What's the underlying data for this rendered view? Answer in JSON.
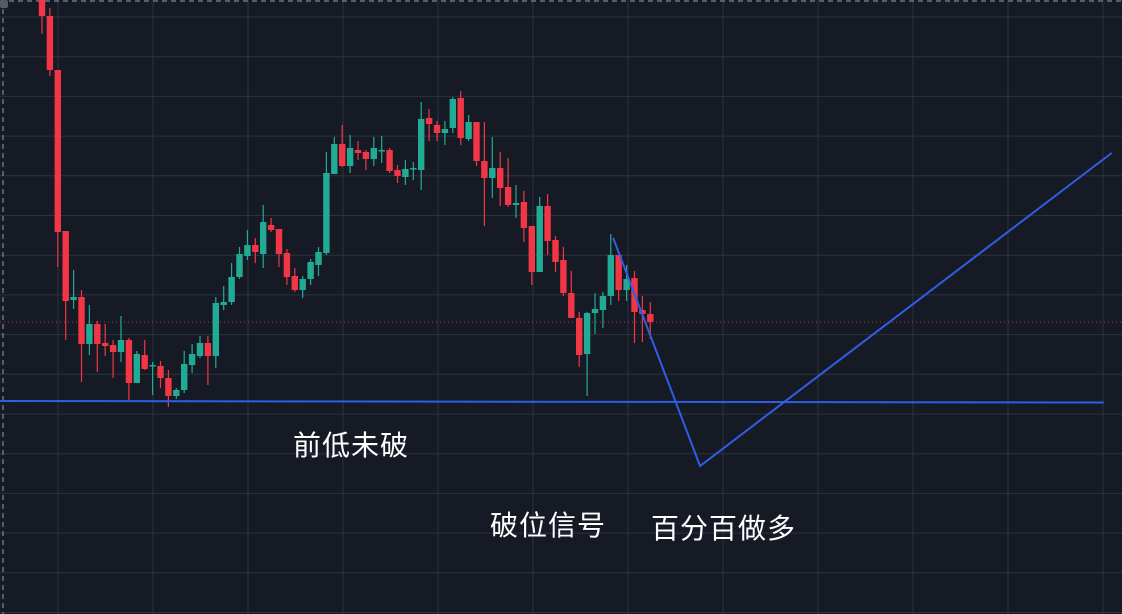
{
  "chart_data": {
    "type": "candlestick",
    "title": "",
    "xlabel": "",
    "ylabel": "",
    "ylim": [
      89.35,
      120.05
    ],
    "grid": true,
    "colors": {
      "up": "#22ab94",
      "down": "#f23645",
      "drawing": "#2e5ee6",
      "background": "#161a25",
      "grid": "#2e323d",
      "last_price_line": "#f23645"
    },
    "candles": [
      [
        120.3,
        120.4,
        118.35,
        119.25
      ],
      [
        119.25,
        119.65,
        116.25,
        116.55
      ],
      [
        116.55,
        116.55,
        106.7,
        108.45
      ],
      [
        108.5,
        108.5,
        103.05,
        105.0
      ],
      [
        105.05,
        106.55,
        104.6,
        105.2
      ],
      [
        105.2,
        105.55,
        100.95,
        102.85
      ],
      [
        102.85,
        104.8,
        102.3,
        103.85
      ],
      [
        103.85,
        104.0,
        101.45,
        102.85
      ],
      [
        102.9,
        103.85,
        102.25,
        102.75
      ],
      [
        102.8,
        103.05,
        101.15,
        102.45
      ],
      [
        102.45,
        104.25,
        101.95,
        103.05
      ],
      [
        103.05,
        103.15,
        100.05,
        100.9
      ],
      [
        100.9,
        102.5,
        100.9,
        102.35
      ],
      [
        102.3,
        103.05,
        101.55,
        101.6
      ],
      [
        101.75,
        101.95,
        100.3,
        101.8
      ],
      [
        101.75,
        102.0,
        100.65,
        101.15
      ],
      [
        101.15,
        101.55,
        99.7,
        100.25
      ],
      [
        100.25,
        100.65,
        100.1,
        100.55
      ],
      [
        100.55,
        102.5,
        100.4,
        101.85
      ],
      [
        101.8,
        102.85,
        101.4,
        102.35
      ],
      [
        102.25,
        103.25,
        102.15,
        102.9
      ],
      [
        102.9,
        103.25,
        100.8,
        102.25
      ],
      [
        102.25,
        105.2,
        101.65,
        104.9
      ],
      [
        104.8,
        105.75,
        104.55,
        104.95
      ],
      [
        104.95,
        106.9,
        104.8,
        106.2
      ],
      [
        106.2,
        107.7,
        106.1,
        107.35
      ],
      [
        107.25,
        108.55,
        107.05,
        107.8
      ],
      [
        107.8,
        108.15,
        106.9,
        107.45
      ],
      [
        107.35,
        109.8,
        106.65,
        108.95
      ],
      [
        108.8,
        109.15,
        108.45,
        108.55
      ],
      [
        108.6,
        108.6,
        106.7,
        107.35
      ],
      [
        107.4,
        107.6,
        105.8,
        106.2
      ],
      [
        106.25,
        106.65,
        105.45,
        105.55
      ],
      [
        105.55,
        106.25,
        105.15,
        106.1
      ],
      [
        106.1,
        107.1,
        105.8,
        106.95
      ],
      [
        106.8,
        107.7,
        106.25,
        107.45
      ],
      [
        107.4,
        112.45,
        107.3,
        111.4
      ],
      [
        111.35,
        113.2,
        111.35,
        112.85
      ],
      [
        112.85,
        113.8,
        111.7,
        111.75
      ],
      [
        111.75,
        113.3,
        111.4,
        112.65
      ],
      [
        112.55,
        113.0,
        112.05,
        112.4
      ],
      [
        112.45,
        112.55,
        111.55,
        112.1
      ],
      [
        112.1,
        113.2,
        111.75,
        112.65
      ],
      [
        112.55,
        113.25,
        111.9,
        112.55
      ],
      [
        112.55,
        112.65,
        111.4,
        111.5
      ],
      [
        111.55,
        111.8,
        110.9,
        111.25
      ],
      [
        111.2,
        112.05,
        110.8,
        111.6
      ],
      [
        111.65,
        111.95,
        111.05,
        111.65
      ],
      [
        111.55,
        114.95,
        110.55,
        114.1
      ],
      [
        114.15,
        114.6,
        113.0,
        113.85
      ],
      [
        113.8,
        114.0,
        113.0,
        113.4
      ],
      [
        113.4,
        114.0,
        112.8,
        113.6
      ],
      [
        113.65,
        115.2,
        113.4,
        115.1
      ],
      [
        115.15,
        115.5,
        112.8,
        113.15
      ],
      [
        113.1,
        114.3,
        113.0,
        113.95
      ],
      [
        113.95,
        113.95,
        111.75,
        112.0
      ],
      [
        112.0,
        113.95,
        108.75,
        111.15
      ],
      [
        111.15,
        113.2,
        110.15,
        111.65
      ],
      [
        111.65,
        112.45,
        109.75,
        110.65
      ],
      [
        110.7,
        112.15,
        109.7,
        109.8
      ],
      [
        109.8,
        110.8,
        109.15,
        109.9
      ],
      [
        109.95,
        110.5,
        107.95,
        108.65
      ],
      [
        108.75,
        108.75,
        105.8,
        106.45
      ],
      [
        106.45,
        110.2,
        106.45,
        109.75
      ],
      [
        109.75,
        110.35,
        107.3,
        108.0
      ],
      [
        108.05,
        108.25,
        106.45,
        106.95
      ],
      [
        107.05,
        107.7,
        105.25,
        105.4
      ],
      [
        105.4,
        106.5,
        104.15,
        104.15
      ],
      [
        104.15,
        104.45,
        101.7,
        102.3
      ],
      [
        102.35,
        104.45,
        100.25,
        104.4
      ],
      [
        104.4,
        105.4,
        103.35,
        104.6
      ],
      [
        104.55,
        105.45,
        103.65,
        105.25
      ],
      [
        105.25,
        108.35,
        104.8,
        107.3
      ],
      [
        107.3,
        107.3,
        105.0,
        105.55
      ],
      [
        105.55,
        106.8,
        105.0,
        106.1
      ],
      [
        106.15,
        106.5,
        102.9,
        104.45
      ],
      [
        104.55,
        105.25,
        102.95,
        104.35
      ],
      [
        104.35,
        104.95,
        103.1,
        103.95
      ]
    ],
    "last_price": 103.95,
    "support_line": {
      "price": 100.0,
      "from_index": -5.3,
      "to_index": 134.4
    },
    "projection_path": [
      {
        "index": 72.3,
        "price": 108.15
      },
      {
        "index": 83.3,
        "price": 96.75
      },
      {
        "index": 135.4,
        "price": 112.4
      }
    ],
    "annotations": {
      "previous_low_not_broken": "前低未破",
      "breakdown_signal": "破位信号",
      "hundred_percent_long": "百分百做多"
    }
  }
}
